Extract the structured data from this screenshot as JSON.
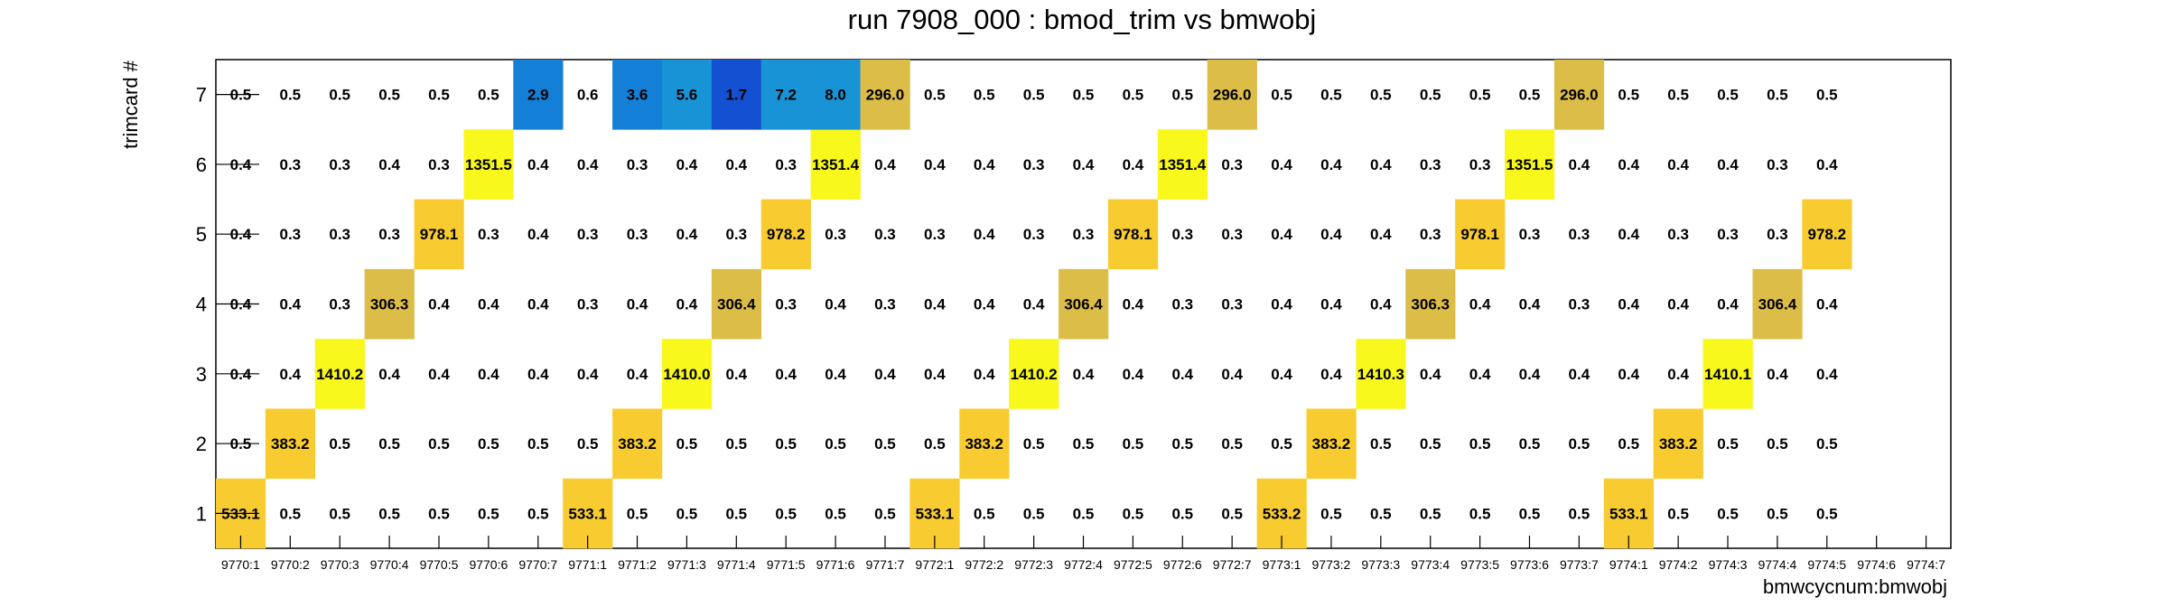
{
  "chart_data": {
    "type": "heatmap",
    "title": "run 7908_000 : bmod_trim vs bmwobj",
    "xlabel": "bmwcycnum:bmwobj",
    "ylabel": "trimcard #",
    "x_categories": [
      "9770:1",
      "9770:2",
      "9770:3",
      "9770:4",
      "9770:5",
      "9770:6",
      "9770:7",
      "9771:1",
      "9771:2",
      "9771:3",
      "9771:4",
      "9771:5",
      "9771:6",
      "9771:7",
      "9772:1",
      "9772:2",
      "9772:3",
      "9772:4",
      "9772:5",
      "9772:6",
      "9772:7",
      "9773:1",
      "9773:2",
      "9773:3",
      "9773:4",
      "9773:5",
      "9773:6",
      "9773:7",
      "9774:1",
      "9774:2",
      "9774:3",
      "9774:4",
      "9774:5",
      "9774:6",
      "9774:7"
    ],
    "y_categories": [
      "1",
      "2",
      "3",
      "4",
      "5",
      "6",
      "7"
    ],
    "values": [
      [
        533.1,
        0.5,
        0.5,
        0.5,
        0.5,
        0.5,
        0.5,
        533.1,
        0.5,
        0.5,
        0.5,
        0.5,
        0.5,
        0.5,
        533.1,
        0.5,
        0.5,
        0.5,
        0.5,
        0.5,
        0.5,
        533.2,
        0.5,
        0.5,
        0.5,
        0.5,
        0.5,
        0.5,
        533.1,
        0.5,
        0.5,
        0.5,
        0.5,
        null,
        null
      ],
      [
        0.5,
        383.2,
        0.5,
        0.5,
        0.5,
        0.5,
        0.5,
        0.5,
        383.2,
        0.5,
        0.5,
        0.5,
        0.5,
        0.5,
        0.5,
        383.2,
        0.5,
        0.5,
        0.5,
        0.5,
        0.5,
        0.5,
        383.2,
        0.5,
        0.5,
        0.5,
        0.5,
        0.5,
        0.5,
        383.2,
        0.5,
        0.5,
        0.5,
        null,
        null
      ],
      [
        0.4,
        0.4,
        1410.2,
        0.4,
        0.4,
        0.4,
        0.4,
        0.4,
        0.4,
        1410.0,
        0.4,
        0.4,
        0.4,
        0.4,
        0.4,
        0.4,
        1410.2,
        0.4,
        0.4,
        0.4,
        0.4,
        0.4,
        0.4,
        1410.3,
        0.4,
        0.4,
        0.4,
        0.4,
        0.4,
        0.4,
        1410.1,
        0.4,
        0.4,
        null,
        null
      ],
      [
        0.4,
        0.4,
        0.3,
        306.3,
        0.4,
        0.4,
        0.4,
        0.3,
        0.4,
        0.4,
        306.4,
        0.3,
        0.4,
        0.3,
        0.4,
        0.4,
        0.4,
        306.4,
        0.4,
        0.3,
        0.3,
        0.4,
        0.4,
        0.4,
        306.3,
        0.4,
        0.4,
        0.3,
        0.4,
        0.4,
        0.4,
        306.4,
        0.4,
        null,
        null
      ],
      [
        0.4,
        0.3,
        0.3,
        0.3,
        978.1,
        0.3,
        0.4,
        0.3,
        0.3,
        0.4,
        0.3,
        978.2,
        0.3,
        0.3,
        0.3,
        0.4,
        0.3,
        0.3,
        978.1,
        0.3,
        0.3,
        0.4,
        0.4,
        0.4,
        0.3,
        978.1,
        0.3,
        0.3,
        0.4,
        0.3,
        0.3,
        0.3,
        978.2,
        null,
        null
      ],
      [
        0.4,
        0.3,
        0.3,
        0.4,
        0.3,
        1351.5,
        0.4,
        0.4,
        0.3,
        0.4,
        0.4,
        0.3,
        1351.4,
        0.4,
        0.4,
        0.4,
        0.3,
        0.4,
        0.4,
        1351.4,
        0.3,
        0.4,
        0.4,
        0.4,
        0.3,
        0.3,
        1351.5,
        0.4,
        0.4,
        0.4,
        0.4,
        0.3,
        0.4,
        null,
        null
      ],
      [
        0.5,
        0.5,
        0.5,
        0.5,
        0.5,
        0.5,
        2.9,
        0.6,
        3.6,
        5.6,
        1.7,
        7.2,
        8.0,
        296.0,
        0.5,
        0.5,
        0.5,
        0.5,
        0.5,
        0.5,
        296.0,
        0.5,
        0.5,
        0.5,
        0.5,
        0.5,
        0.5,
        296.0,
        0.5,
        0.5,
        0.5,
        0.5,
        0.5,
        null,
        null
      ]
    ],
    "cell_colors": {
      "very_high": "#f8f81c",
      "high": "#f8cc30",
      "mid_high": "#dcbd48",
      "low_bright": "#1893d6",
      "low_mid": "#147fd6",
      "low_dark": "#1450d2"
    },
    "grid": false,
    "legend": "none"
  }
}
